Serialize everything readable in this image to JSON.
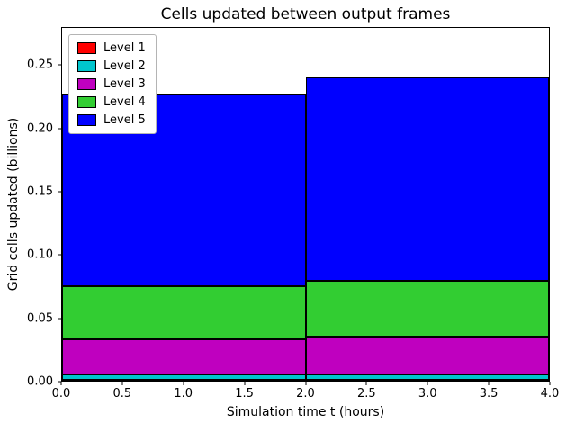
{
  "chart_data": {
    "type": "bar",
    "stacked": true,
    "title": "Cells updated between output frames",
    "xlabel": "Simulation time t (hours)",
    "ylabel": "Grid cells updated (billions)",
    "xlim": [
      0,
      4
    ],
    "ylim": [
      0,
      0.28
    ],
    "grid": false,
    "legend_position": "upper left",
    "x_tick_values": [
      0,
      0.5,
      1,
      1.5,
      2,
      2.5,
      3,
      3.5,
      4
    ],
    "x_tick_labels": [
      "0.0",
      "0.5",
      "1.0",
      "1.5",
      "2.0",
      "2.5",
      "3.0",
      "3.5",
      "4.0"
    ],
    "y_tick_values": [
      0,
      0.05,
      0.1,
      0.15,
      0.2,
      0.25
    ],
    "y_tick_labels": [
      "0.00",
      "0.05",
      "0.10",
      "0.15",
      "0.20",
      "0.25"
    ],
    "bars": [
      {
        "from": 0,
        "to": 2
      },
      {
        "from": 2,
        "to": 4
      }
    ],
    "series": [
      {
        "name": "Level 1",
        "color": "#ff0000",
        "values": [
          0.001,
          0.001
        ]
      },
      {
        "name": "Level 2",
        "color": "#00c5cd",
        "values": [
          0.004,
          0.004
        ]
      },
      {
        "name": "Level 3",
        "color": "#bf00bf",
        "values": [
          0.028,
          0.03
        ]
      },
      {
        "name": "Level 4",
        "color": "#32cd32",
        "values": [
          0.042,
          0.044
        ]
      },
      {
        "name": "Level 5",
        "color": "#0000ff",
        "values": [
          0.152,
          0.162
        ]
      }
    ],
    "cumulative_totals": [
      0.227,
      0.241
    ]
  }
}
